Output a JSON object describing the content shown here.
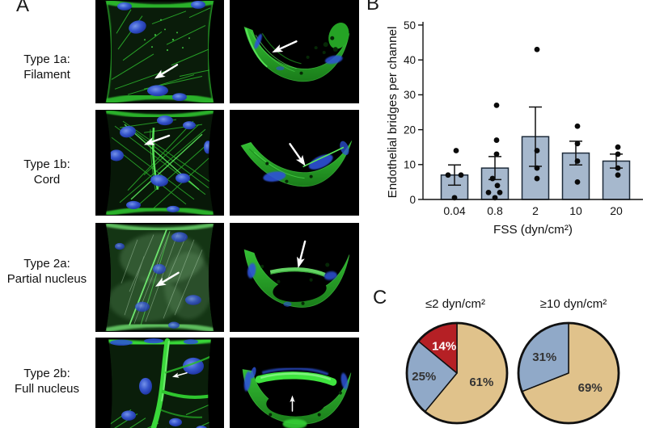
{
  "figure": {
    "panel_a": {
      "letter": "A",
      "rows": [
        {
          "line1": "Type 1a:",
          "line2": "Filament"
        },
        {
          "line1": "Type 1b:",
          "line2": "Cord"
        },
        {
          "line1": "Type 2a:",
          "line2": "Partial nucleus"
        },
        {
          "line1": "Type 2b:",
          "line2": "Full nucleus"
        }
      ]
    },
    "panel_b": {
      "letter": "B"
    },
    "panel_c": {
      "letter": "C"
    }
  },
  "chart_data": [
    {
      "type": "bar",
      "categories": [
        "0.04",
        "0.8",
        "2",
        "10",
        "20"
      ],
      "values": [
        7,
        9,
        18,
        13.3,
        11
      ],
      "error_sem": [
        2.9,
        3.3,
        8.5,
        3.4,
        2
      ],
      "points": [
        [
          14,
          7,
          7,
          0.5
        ],
        [
          27,
          17,
          13,
          6,
          4,
          2,
          2,
          0.5
        ],
        [
          43,
          14,
          9,
          6
        ],
        [
          21,
          16,
          11,
          5
        ],
        [
          15,
          13,
          9,
          7
        ]
      ],
      "points_dx": [
        [
          2,
          -8,
          8,
          0
        ],
        [
          2,
          2,
          2,
          -3,
          3,
          -8,
          6,
          0
        ],
        [
          2,
          2,
          2,
          2
        ],
        [
          2,
          2,
          2,
          2
        ],
        [
          2,
          2,
          2,
          2
        ]
      ],
      "xlabel": "FSS (dyn/cm²)",
      "ylabel": "Endothelial bridges per channel",
      "ylim": [
        0,
        50
      ],
      "yticks": [
        0,
        10,
        20,
        30,
        40,
        50
      ],
      "grid": false,
      "bar_color": "#a6b8cd",
      "bar_stroke": "#1d2b3a"
    },
    {
      "type": "pie",
      "title": "≤2 dyn/cm²",
      "slices": [
        {
          "label": "61%",
          "value": 61,
          "color": "#e0c28b",
          "label_color": "#333333",
          "label_r": 0.52
        },
        {
          "label": "25%",
          "value": 25,
          "color": "#90a9c8",
          "label_color": "#333333",
          "label_r": 0.66
        },
        {
          "label": "14%",
          "value": 14,
          "color": "#b52025",
          "label_color": "#ffffff",
          "label_r": 0.6
        }
      ]
    },
    {
      "type": "pie",
      "title": "≥10 dyn/cm²",
      "slices": [
        {
          "label": "69%",
          "value": 69,
          "color": "#e0c28b",
          "label_color": "#333333",
          "label_r": 0.52
        },
        {
          "label": "31%",
          "value": 31,
          "color": "#90a9c8",
          "label_color": "#333333",
          "label_r": 0.58
        }
      ]
    }
  ]
}
